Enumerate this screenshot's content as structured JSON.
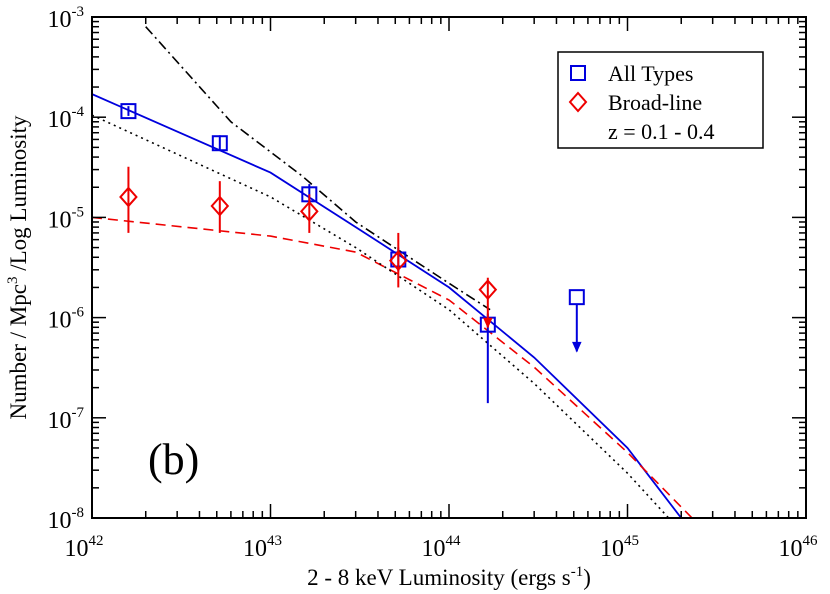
{
  "chart_data": {
    "type": "scatter",
    "xlabel": "2 - 8 keV Luminosity  (ergs s^-1)",
    "ylabel": "Number / Mpc^3 /Log Luminosity",
    "xscale": "log",
    "yscale": "log",
    "xlim": [
      1e+42,
      1e+46
    ],
    "ylim": [
      1e-08,
      0.001
    ],
    "x_ticks": [
      {
        "value": 1e+42,
        "base": "10",
        "exp": "42"
      },
      {
        "value": 1e+43,
        "base": "10",
        "exp": "43"
      },
      {
        "value": 1e+44,
        "base": "10",
        "exp": "44"
      },
      {
        "value": 1e+45,
        "base": "10",
        "exp": "45"
      },
      {
        "value": 1e+46,
        "base": "10",
        "exp": "46"
      }
    ],
    "y_ticks": [
      {
        "value": 1e-08,
        "base": "10",
        "exp": "-8"
      },
      {
        "value": 1e-07,
        "base": "10",
        "exp": "-7"
      },
      {
        "value": 1e-06,
        "base": "10",
        "exp": "-6"
      },
      {
        "value": 1e-05,
        "base": "10",
        "exp": "-5"
      },
      {
        "value": 0.0001,
        "base": "10",
        "exp": "-4"
      },
      {
        "value": 0.001,
        "base": "10",
        "exp": "-3"
      }
    ],
    "annotation": "(b)",
    "legend": {
      "position": "top-right",
      "entries": [
        "All Types",
        "Broad-line"
      ],
      "note": "z = 0.1 - 0.4"
    },
    "series": [
      {
        "name": "All Types",
        "marker": "square",
        "color": "#0000dd",
        "points": [
          {
            "x": 1.6e+42,
            "y": 0.000115,
            "ylo": 0.000103,
            "yhi": 0.000129
          },
          {
            "x": 5.2e+42,
            "y": 5.5e-05,
            "ylo": 4.6e-05,
            "yhi": 6.6e-05
          },
          {
            "x": 1.65e+43,
            "y": 1.7e-05,
            "ylo": 1.35e-05,
            "yhi": 2.15e-05
          },
          {
            "x": 5.2e+43,
            "y": 3.8e-06,
            "ylo": 2.9e-06,
            "yhi": 5e-06
          },
          {
            "x": 1.65e+44,
            "y": 8.5e-07,
            "ylo": 1.4e-07,
            "yhi": 1.1e-06
          },
          {
            "x": 5.2e+44,
            "y": 1.6e-06,
            "upper_limit": true,
            "arrow_to": 4.6e-07
          }
        ]
      },
      {
        "name": "Broad-line",
        "marker": "diamond",
        "color": "#ee0000",
        "points": [
          {
            "x": 1.6e+42,
            "y": 1.6e-05,
            "ylo": 7e-06,
            "yhi": 3.2e-05
          },
          {
            "x": 5.2e+42,
            "y": 1.3e-05,
            "ylo": 7e-06,
            "yhi": 2.3e-05
          },
          {
            "x": 1.65e+43,
            "y": 1.15e-05,
            "ylo": 7e-06,
            "yhi": 1.7e-05
          },
          {
            "x": 5.2e+43,
            "y": 3.7e-06,
            "ylo": 2e-06,
            "yhi": 7e-06
          },
          {
            "x": 1.65e+44,
            "y": 1.9e-06,
            "ylo": 8e-07,
            "yhi": 2.5e-06,
            "arrow": true
          }
        ]
      }
    ],
    "curves": [
      {
        "style": "solid",
        "color": "#0000dd",
        "points": [
          [
            1e+42,
            0.00017
          ],
          [
            1e+43,
            2.8e-05
          ],
          [
            3e+43,
            8e-06
          ],
          [
            1e+44,
            2e-06
          ],
          [
            3e+44,
            4e-07
          ],
          [
            1e+45,
            5e-08
          ],
          [
            2e+45,
            1e-08
          ]
        ]
      },
      {
        "style": "dashed",
        "color": "#ee0000",
        "points": [
          [
            1e+42,
            1e-05
          ],
          [
            1e+43,
            6.5e-06
          ],
          [
            3e+43,
            4.5e-06
          ],
          [
            1e+44,
            1.5e-06
          ],
          [
            3e+44,
            3.2e-07
          ],
          [
            1e+45,
            4.5e-08
          ],
          [
            2.3e+45,
            1e-08
          ]
        ]
      },
      {
        "style": "dotted",
        "color": "#000000",
        "points": [
          [
            1e+42,
            0.000105
          ],
          [
            1e+43,
            1.6e-05
          ],
          [
            3e+43,
            5e-06
          ],
          [
            1e+44,
            1.2e-06
          ],
          [
            3e+44,
            2.2e-07
          ],
          [
            1e+45,
            2.8e-08
          ],
          [
            1.7e+45,
            1e-08
          ]
        ]
      },
      {
        "style": "dashdot",
        "color": "#000000",
        "points": [
          [
            2e+42,
            0.0008
          ],
          [
            6e+42,
            9e-05
          ],
          [
            1.5e+43,
            2.6e-05
          ],
          [
            3e+43,
            9e-06
          ],
          [
            1e+44,
            2.2e-06
          ],
          [
            1.7e+44,
            1.2e-06
          ]
        ]
      }
    ]
  }
}
